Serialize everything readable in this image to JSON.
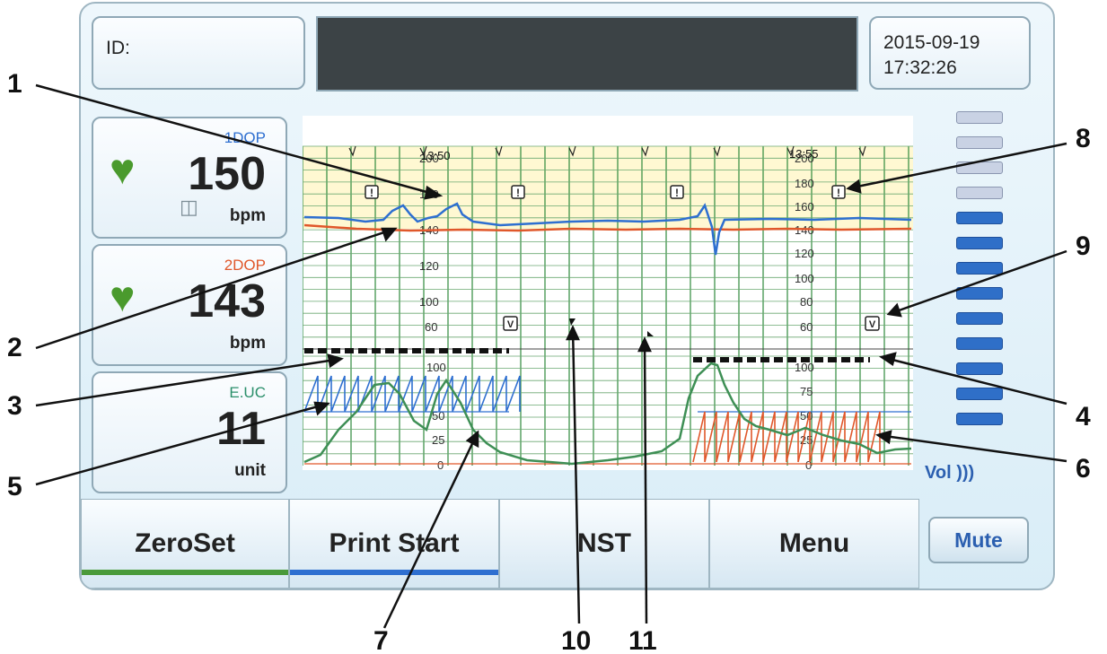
{
  "header": {
    "id_label": "ID:",
    "date": "2015-09-19",
    "time": "17:32:26"
  },
  "vitals": [
    {
      "source": "1DOP",
      "source_color": "#2e6fd0",
      "value": "150",
      "unit": "bpm"
    },
    {
      "source": "2DOP",
      "source_color": "#e0572a",
      "value": "143",
      "unit": "bpm"
    },
    {
      "source": "E.UC",
      "source_color": "#2a8f6a",
      "value": "11",
      "unit": "unit"
    }
  ],
  "chart": {
    "time_left": "13:50",
    "time_right": "13:55",
    "fhr_ticks": [
      "200",
      "180",
      "160",
      "140",
      "120",
      "100",
      "80",
      "60"
    ],
    "uc_ticks": [
      "100",
      "75",
      "50",
      "25",
      "0"
    ],
    "alert_mark": "!",
    "event_mark": "V"
  },
  "volume": {
    "label": "Vol",
    "level": 0.69,
    "segments": 13,
    "on_color": "#2f6fc8",
    "off_color": "#c9d2e4"
  },
  "footer": {
    "zeroset": "ZeroSet",
    "print": "Print Start",
    "nst": "NST",
    "menu": "Menu",
    "mute": "Mute"
  },
  "callouts": [
    "1",
    "2",
    "3",
    "4",
    "5",
    "6",
    "7",
    "8",
    "9",
    "10",
    "11"
  ]
}
